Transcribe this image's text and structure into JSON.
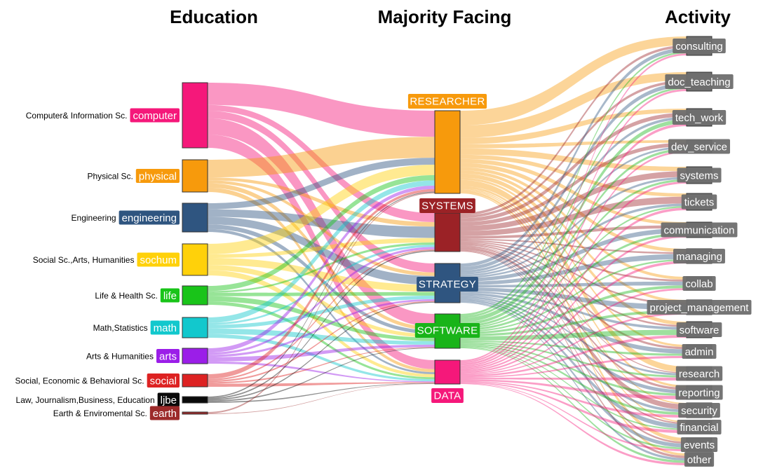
{
  "columns": {
    "education": "Education",
    "majority": "Majority Facing",
    "activity": "Activity"
  },
  "education": [
    {
      "key": "computer",
      "full": "Computer& Information Sc.",
      "color": "#f5187a"
    },
    {
      "key": "physical",
      "full": "Physical Sc.",
      "color": "#f79a0c"
    },
    {
      "key": "engineering",
      "full": "Engineering",
      "color": "#2f5580"
    },
    {
      "key": "sochum",
      "full": "Social Sc.,Arts, Humanities",
      "color": "#ffd10a"
    },
    {
      "key": "life",
      "full": "Life & Health Sc.",
      "color": "#19c419"
    },
    {
      "key": "math",
      "full": "Math,Statistics",
      "color": "#12c8cd"
    },
    {
      "key": "arts",
      "full": "Arts & Humanities",
      "color": "#9b1ee8"
    },
    {
      "key": "social",
      "full": "Social, Economic & Behavioral Sc.",
      "color": "#dd2222"
    },
    {
      "key": "ljbe",
      "full": "Law, Journalism,Business, Education",
      "color": "#0a0a0a"
    },
    {
      "key": "earth",
      "full": "Earth & Enviromental Sc.",
      "color": "#9c2a2a"
    }
  ],
  "majority": [
    {
      "key": "RESEARCHER",
      "color": "#f79a0c"
    },
    {
      "key": "SYSTEMS",
      "color": "#9b2226"
    },
    {
      "key": "STRATEGY",
      "color": "#2f5580"
    },
    {
      "key": "SOFTWARE",
      "color": "#19b419"
    },
    {
      "key": "DATA",
      "color": "#f5187a"
    }
  ],
  "activity": [
    {
      "key": "consulting"
    },
    {
      "key": "doc_teaching"
    },
    {
      "key": "tech_work"
    },
    {
      "key": "dev_service"
    },
    {
      "key": "systems"
    },
    {
      "key": "tickets"
    },
    {
      "key": "communication"
    },
    {
      "key": "managing"
    },
    {
      "key": "collab"
    },
    {
      "key": "project_management"
    },
    {
      "key": "software"
    },
    {
      "key": "admin"
    },
    {
      "key": "research"
    },
    {
      "key": "reporting"
    },
    {
      "key": "security"
    },
    {
      "key": "financial"
    },
    {
      "key": "events"
    },
    {
      "key": "other"
    }
  ],
  "activity_color": "#6e6e6e"
}
